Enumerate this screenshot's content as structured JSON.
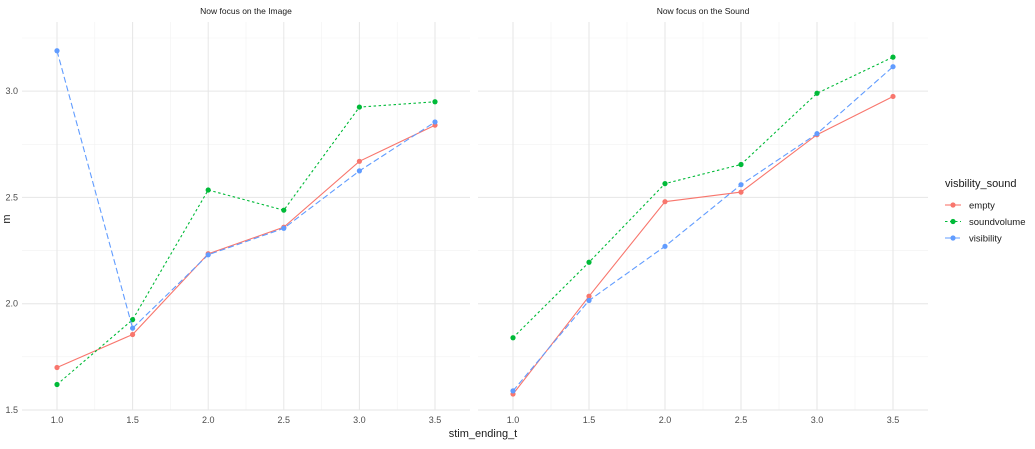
{
  "chart_data": {
    "type": "line",
    "xlabel": "stim_ending_t",
    "ylabel": "m",
    "xlim": [
      1.0,
      3.5
    ],
    "ylim": [
      1.5,
      3.25
    ],
    "x_ticks": [
      "1.0",
      "1.5",
      "2.0",
      "2.5",
      "3.0",
      "3.5"
    ],
    "y_ticks": [
      "1.5",
      "2.0",
      "2.5",
      "3.0"
    ],
    "grid": true,
    "legend": {
      "title": "visbility_sound",
      "position": "right",
      "entries": [
        {
          "name": "empty",
          "color": "#F8766D",
          "dash": "solid"
        },
        {
          "name": "soundvolume",
          "color": "#00BA38",
          "dash": "dotted"
        },
        {
          "name": "visibility",
          "color": "#619CFF",
          "dash": "dashed"
        }
      ]
    },
    "panels": [
      {
        "title": "Now focus on the Image",
        "x": [
          1.0,
          1.5,
          2.0,
          2.5,
          3.0,
          3.5
        ],
        "series": [
          {
            "name": "empty",
            "values": [
              1.7,
              1.855,
              2.235,
              2.36,
              2.67,
              2.84
            ]
          },
          {
            "name": "soundvolume",
            "values": [
              1.62,
              1.925,
              2.535,
              2.44,
              2.925,
              2.95
            ]
          },
          {
            "name": "visibility",
            "values": [
              3.19,
              1.885,
              2.23,
              2.355,
              2.625,
              2.855
            ]
          }
        ]
      },
      {
        "title": "Now focus on the Sound",
        "x": [
          1.0,
          1.5,
          2.0,
          2.5,
          3.0,
          3.5
        ],
        "series": [
          {
            "name": "empty",
            "values": [
              1.575,
              2.035,
              2.48,
              2.525,
              2.795,
              2.975
            ]
          },
          {
            "name": "soundvolume",
            "values": [
              1.84,
              2.195,
              2.565,
              2.655,
              2.99,
              3.16
            ]
          },
          {
            "name": "visibility",
            "values": [
              1.59,
              2.015,
              2.27,
              2.56,
              2.8,
              3.115
            ]
          }
        ]
      }
    ]
  }
}
